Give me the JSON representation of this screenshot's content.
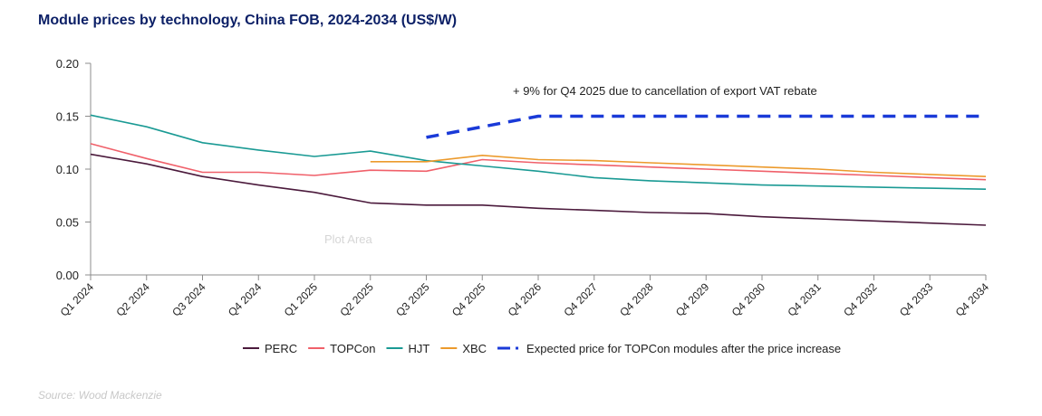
{
  "chart_data": {
    "type": "line",
    "title": "Module prices by technology, China FOB, 2024-2034 (US$/W)",
    "xlabel": "",
    "ylabel": "",
    "ylim": [
      0,
      0.2
    ],
    "yticks": [
      "0.00",
      "0.05",
      "0.10",
      "0.15",
      "0.20"
    ],
    "categories": [
      "Q1 2024",
      "Q2 2024",
      "Q3 2024",
      "Q4 2024",
      "Q1 2025",
      "Q2 2025",
      "Q3 2025",
      "Q4 2025",
      "Q4 2026",
      "Q4 2027",
      "Q4 2028",
      "Q4 2029",
      "Q4 2030",
      "Q4 2031",
      "Q4 2032",
      "Q4 2033",
      "Q4 2034"
    ],
    "grid": false,
    "legend_position": "bottom",
    "series": [
      {
        "name": "PERC",
        "color": "#4b1a3c",
        "style": "solid",
        "values": [
          0.114,
          0.105,
          0.093,
          0.085,
          0.078,
          0.068,
          0.066,
          0.066,
          0.063,
          0.061,
          0.059,
          0.058,
          0.055,
          0.053,
          0.051,
          0.049,
          0.047
        ]
      },
      {
        "name": "TOPCon",
        "color": "#f0606a",
        "style": "solid",
        "values": [
          0.124,
          0.11,
          0.097,
          0.097,
          0.094,
          0.099,
          0.098,
          0.109,
          0.106,
          0.104,
          0.102,
          0.1,
          0.098,
          0.096,
          0.094,
          0.092,
          0.09
        ]
      },
      {
        "name": "HJT",
        "color": "#1a9a94",
        "style": "solid",
        "values": [
          0.151,
          0.14,
          0.125,
          0.118,
          0.112,
          0.117,
          0.108,
          0.103,
          0.098,
          0.092,
          0.089,
          0.087,
          0.085,
          0.084,
          0.083,
          0.082,
          0.081
        ]
      },
      {
        "name": "XBC",
        "color": "#ec9a2c",
        "style": "solid",
        "values": [
          null,
          null,
          null,
          null,
          null,
          0.107,
          0.107,
          0.113,
          0.109,
          0.108,
          0.106,
          0.104,
          0.102,
          0.1,
          0.097,
          0.095,
          0.093
        ]
      },
      {
        "name": "Expected price for TOPCon modules after the price increase",
        "color": "#1a3ad8",
        "style": "dashed",
        "values": [
          null,
          null,
          null,
          null,
          null,
          null,
          0.13,
          0.14,
          0.15,
          0.15,
          0.15,
          0.15,
          0.15,
          0.15,
          0.15,
          0.15,
          0.15
        ]
      }
    ],
    "annotations": [
      {
        "text": "+ 9% for Q4 2025 due to cancellation of export VAT rebate"
      }
    ],
    "plot_area_label": "Plot Area"
  },
  "source": "Source: Wood Mackenzie"
}
